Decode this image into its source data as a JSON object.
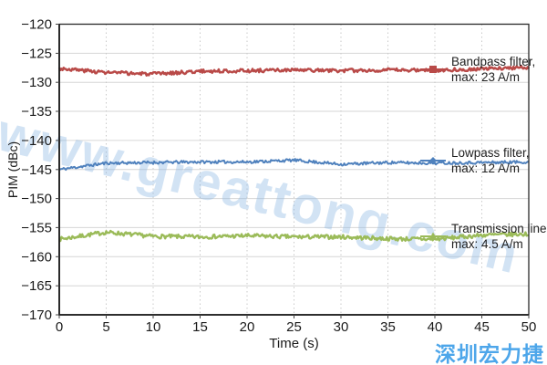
{
  "watermark": {
    "text": "www.greattong.com",
    "color": "#8fb8e4"
  },
  "footer_brand": {
    "text": "深圳宏力捷",
    "color": "#4da6ea"
  },
  "chart_data": {
    "type": "line",
    "title": "",
    "xlabel": "Time (s)",
    "ylabel": "PIM (dBc)",
    "xlim": [
      0,
      50
    ],
    "ylim": [
      -170,
      -120
    ],
    "x_ticks": [
      0,
      5,
      10,
      15,
      20,
      25,
      30,
      35,
      40,
      45,
      50
    ],
    "x_tick_labels": [
      "0",
      "5",
      "10",
      "15",
      "20",
      "25",
      "30",
      "35",
      "40",
      "45",
      "50"
    ],
    "y_ticks": [
      -120,
      -125,
      -130,
      -135,
      -140,
      -145,
      -150,
      -155,
      -160,
      -165,
      -170
    ],
    "y_tick_labels": [
      "−120",
      "−125",
      "−130",
      "−135",
      "−140",
      "−145",
      "−150",
      "−155",
      "−160",
      "−165",
      "−170"
    ],
    "grid": {
      "horizontal": "solid",
      "vertical": "dotted",
      "color": "#d6d6d6"
    },
    "legend_position": "right",
    "x_samples": [
      0,
      5,
      10,
      15,
      20,
      25,
      30,
      35,
      40,
      45,
      50
    ],
    "series": [
      {
        "name": "Bandpass filter, max: 23 A/m",
        "label_lines": [
          "Bandpass filter,",
          "max: 23 A/m"
        ],
        "color": "#b94a48",
        "marker": "square",
        "values": [
          -127.6,
          -128.3,
          -128.6,
          -128.1,
          -128.0,
          -127.9,
          -128.0,
          -127.9,
          -127.9,
          -127.7,
          -127.4
        ],
        "noise_db": 0.3
      },
      {
        "name": "Lowpass filter, max: 12 A/m",
        "label_lines": [
          "Lowpass filter,",
          "max: 12 A/m"
        ],
        "color": "#4f81bd",
        "marker": "diamond",
        "values": [
          -145.0,
          -143.9,
          -143.8,
          -143.7,
          -143.7,
          -143.4,
          -144.1,
          -143.8,
          -143.9,
          -143.8,
          -143.7
        ],
        "noise_db": 0.25
      },
      {
        "name": "Transmission line, max: 4.5 A/m",
        "label_lines": [
          "Transmission line,",
          "max: 4.5 A/m"
        ],
        "color": "#9bbb59",
        "marker": "triangle",
        "values": [
          -157.0,
          -155.8,
          -156.5,
          -156.6,
          -156.4,
          -156.6,
          -156.6,
          -156.9,
          -157.0,
          -156.3,
          -156.1
        ],
        "noise_db": 0.35
      }
    ]
  }
}
